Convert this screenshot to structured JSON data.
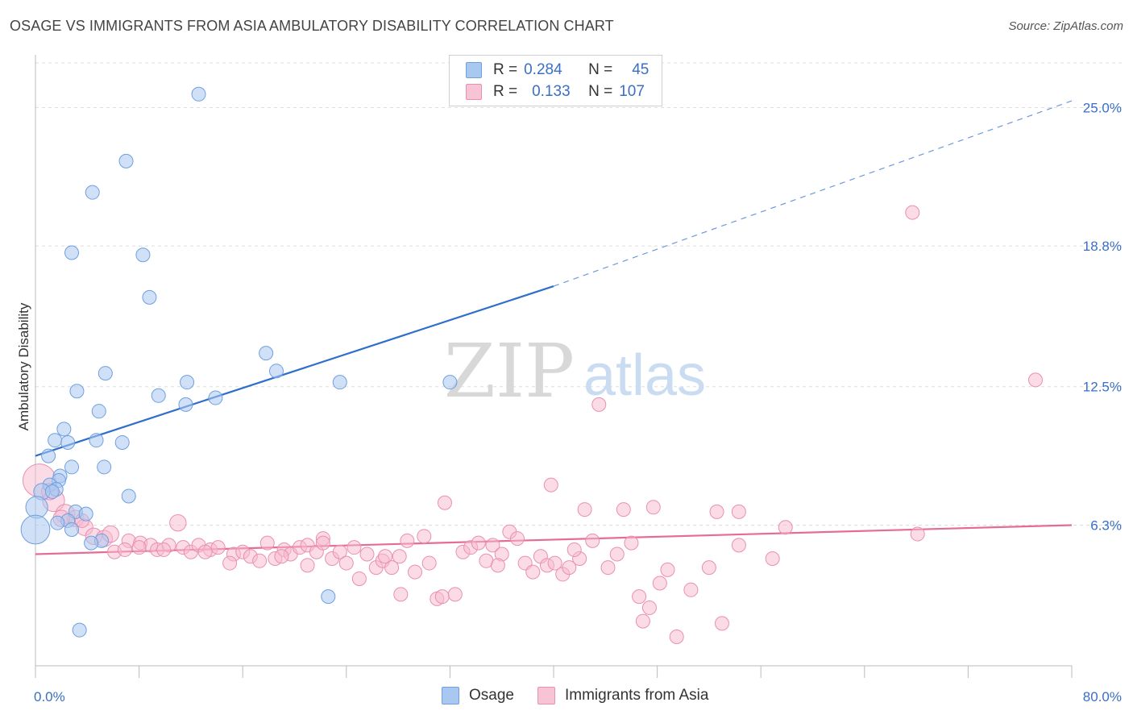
{
  "header": {
    "title": "OSAGE VS IMMIGRANTS FROM ASIA AMBULATORY DISABILITY CORRELATION CHART",
    "source": "Source: ZipAtlas.com"
  },
  "watermark": {
    "zip": "ZIP",
    "atlas": "atlas"
  },
  "legend": {
    "rows": [
      {
        "r_label": "R =",
        "r_value": "0.284",
        "n_label": "N =",
        "n_value": "45"
      },
      {
        "r_label": "R =",
        "r_value": "0.133",
        "n_label": "N =",
        "n_value": "107"
      }
    ]
  },
  "bottom_legend": {
    "series1": "Osage",
    "series2": "Immigrants from Asia"
  },
  "colors": {
    "osage_fill": "#a9c8f0",
    "osage_stroke": "#6f9fe0",
    "osage_line": "#2f6fcc",
    "asia_fill": "#f7b9ce",
    "asia_stroke": "#ea8fb0",
    "asia_line": "#e46c96",
    "axis_text": "#3a6fc4",
    "grid": "#dddddd"
  },
  "chart_data": {
    "type": "scatter",
    "title": "OSAGE VS IMMIGRANTS FROM ASIA AMBULATORY DISABILITY CORRELATION CHART",
    "xlabel": "",
    "ylabel": "Ambulatory Disability",
    "xlim": [
      0,
      80
    ],
    "ylim": [
      0,
      27
    ],
    "x_tick_labels": [
      "0.0%",
      "80.0%"
    ],
    "y_ticks": [
      6.3,
      12.5,
      18.8,
      25.0
    ],
    "y_tick_labels": [
      "6.3%",
      "12.5%",
      "18.8%",
      "25.0%"
    ],
    "grid": true,
    "legend_position": "top-center",
    "series": [
      {
        "name": "Osage",
        "R": 0.284,
        "N": 45,
        "trend": {
          "x0": 0,
          "y0": 9.4,
          "x1": 40,
          "y1": 17.0,
          "extend_to_x": 80,
          "extend_y": 25.3
        },
        "points": [
          [
            12.6,
            25.6,
            1
          ],
          [
            7.0,
            22.6,
            1
          ],
          [
            4.4,
            21.2,
            1
          ],
          [
            2.8,
            18.5,
            1
          ],
          [
            8.3,
            18.4,
            1
          ],
          [
            8.8,
            16.5,
            1
          ],
          [
            17.8,
            14.0,
            1
          ],
          [
            18.6,
            13.2,
            1
          ],
          [
            5.4,
            13.1,
            1
          ],
          [
            23.5,
            12.7,
            1
          ],
          [
            32.0,
            12.7,
            1
          ],
          [
            11.7,
            12.7,
            1
          ],
          [
            3.2,
            12.3,
            1
          ],
          [
            9.5,
            12.1,
            1
          ],
          [
            13.9,
            12.0,
            1
          ],
          [
            11.6,
            11.7,
            1
          ],
          [
            4.9,
            11.4,
            1
          ],
          [
            2.2,
            10.6,
            1
          ],
          [
            1.5,
            10.1,
            1
          ],
          [
            2.5,
            10.0,
            1
          ],
          [
            4.7,
            10.1,
            1
          ],
          [
            6.7,
            10.0,
            1
          ],
          [
            1.0,
            9.4,
            1
          ],
          [
            2.8,
            8.9,
            1
          ],
          [
            5.3,
            8.9,
            1
          ],
          [
            1.9,
            8.5,
            1
          ],
          [
            1.8,
            8.3,
            1
          ],
          [
            1.1,
            8.1,
            1
          ],
          [
            1.6,
            7.9,
            1
          ],
          [
            0.5,
            7.8,
            1.2
          ],
          [
            1.3,
            7.8,
            1
          ],
          [
            7.2,
            7.6,
            1
          ],
          [
            0.1,
            7.1,
            1.6
          ],
          [
            3.1,
            6.9,
            1
          ],
          [
            3.9,
            6.8,
            1
          ],
          [
            2.5,
            6.5,
            1
          ],
          [
            1.7,
            6.4,
            1
          ],
          [
            2.8,
            6.1,
            1
          ],
          [
            0.0,
            6.1,
            2.1
          ],
          [
            5.1,
            5.6,
            1
          ],
          [
            4.3,
            5.5,
            1
          ],
          [
            22.6,
            3.1,
            1
          ],
          [
            3.4,
            1.6,
            1
          ]
        ]
      },
      {
        "name": "Immigrants from Asia",
        "R": 0.133,
        "N": 107,
        "trend": {
          "x0": 0,
          "y0": 5.0,
          "x1": 80,
          "y1": 6.3
        },
        "points": [
          [
            67.7,
            20.3,
            1
          ],
          [
            77.2,
            12.8,
            1
          ],
          [
            43.5,
            11.7,
            1
          ],
          [
            0.3,
            8.3,
            2.4
          ],
          [
            39.8,
            8.1,
            1
          ],
          [
            31.6,
            7.3,
            1
          ],
          [
            42.4,
            7.0,
            1
          ],
          [
            45.4,
            7.0,
            1
          ],
          [
            47.7,
            7.1,
            1
          ],
          [
            52.6,
            6.9,
            1
          ],
          [
            54.3,
            6.9,
            1
          ],
          [
            1.4,
            7.4,
            1.6
          ],
          [
            2.3,
            6.8,
            1.4
          ],
          [
            3.1,
            6.6,
            1.2
          ],
          [
            11.0,
            6.4,
            1.2
          ],
          [
            3.8,
            6.2,
            1.2
          ],
          [
            57.9,
            6.2,
            1
          ],
          [
            68.1,
            5.9,
            1
          ],
          [
            4.5,
            5.8,
            1.2
          ],
          [
            5.3,
            5.7,
            1.2
          ],
          [
            5.8,
            5.9,
            1.2
          ],
          [
            7.2,
            5.6,
            1
          ],
          [
            8.1,
            5.5,
            1
          ],
          [
            8.9,
            5.4,
            1
          ],
          [
            9.4,
            5.2,
            1
          ],
          [
            10.3,
            5.4,
            1
          ],
          [
            11.4,
            5.3,
            1
          ],
          [
            12.0,
            5.1,
            1
          ],
          [
            12.6,
            5.4,
            1
          ],
          [
            13.5,
            5.2,
            1
          ],
          [
            14.1,
            5.3,
            1
          ],
          [
            15.3,
            5.0,
            1
          ],
          [
            16.0,
            5.1,
            1
          ],
          [
            16.6,
            4.9,
            1
          ],
          [
            17.3,
            4.7,
            1
          ],
          [
            17.9,
            5.5,
            1
          ],
          [
            18.5,
            4.8,
            1
          ],
          [
            19.2,
            5.2,
            1
          ],
          [
            19.7,
            5.0,
            1
          ],
          [
            20.4,
            5.3,
            1
          ],
          [
            21.0,
            5.4,
            1
          ],
          [
            21.7,
            5.1,
            1
          ],
          [
            22.2,
            5.7,
            1
          ],
          [
            22.9,
            4.8,
            1
          ],
          [
            23.5,
            5.1,
            1
          ],
          [
            24.0,
            4.6,
            1
          ],
          [
            24.6,
            5.3,
            1
          ],
          [
            25.0,
            3.9,
            1
          ],
          [
            25.6,
            5.0,
            1
          ],
          [
            26.3,
            4.4,
            1
          ],
          [
            26.8,
            4.7,
            1
          ],
          [
            27.5,
            4.4,
            1
          ],
          [
            28.1,
            4.9,
            1
          ],
          [
            28.7,
            5.6,
            1
          ],
          [
            29.3,
            4.2,
            1
          ],
          [
            30.0,
            5.8,
            1
          ],
          [
            30.4,
            4.6,
            1
          ],
          [
            31.0,
            3.0,
            1
          ],
          [
            31.4,
            3.1,
            1
          ],
          [
            32.4,
            3.2,
            1
          ],
          [
            33.0,
            5.1,
            1
          ],
          [
            33.6,
            5.3,
            1
          ],
          [
            34.2,
            5.5,
            1
          ],
          [
            34.8,
            4.7,
            1
          ],
          [
            35.3,
            5.4,
            1
          ],
          [
            36.0,
            5.0,
            1
          ],
          [
            36.6,
            6.0,
            1
          ],
          [
            37.2,
            5.7,
            1
          ],
          [
            37.8,
            4.6,
            1
          ],
          [
            38.4,
            4.2,
            1
          ],
          [
            39.0,
            4.9,
            1
          ],
          [
            39.5,
            4.5,
            1
          ],
          [
            40.1,
            4.6,
            1
          ],
          [
            40.7,
            4.1,
            1
          ],
          [
            41.2,
            4.4,
            1
          ],
          [
            42.0,
            4.8,
            1
          ],
          [
            43.0,
            5.6,
            1
          ],
          [
            44.2,
            4.4,
            1
          ],
          [
            44.9,
            5.0,
            1
          ],
          [
            46.0,
            5.5,
            1
          ],
          [
            46.6,
            3.1,
            1
          ],
          [
            46.9,
            2.0,
            1
          ],
          [
            47.4,
            2.6,
            1
          ],
          [
            48.2,
            3.7,
            1
          ],
          [
            48.8,
            4.3,
            1
          ],
          [
            49.5,
            1.3,
            1
          ],
          [
            50.6,
            3.4,
            1
          ],
          [
            52.0,
            4.4,
            1
          ],
          [
            53.0,
            1.9,
            1
          ],
          [
            54.3,
            5.4,
            1
          ],
          [
            56.9,
            4.8,
            1
          ],
          [
            8.0,
            5.3,
            1
          ],
          [
            9.9,
            5.2,
            1
          ],
          [
            6.1,
            5.1,
            1
          ],
          [
            6.9,
            5.2,
            1
          ],
          [
            2.0,
            6.6,
            1.2
          ],
          [
            3.6,
            6.5,
            1
          ],
          [
            1.1,
            7.8,
            1.2
          ],
          [
            15.0,
            4.6,
            1
          ],
          [
            22.2,
            5.5,
            1
          ],
          [
            28.2,
            3.2,
            1
          ],
          [
            27.0,
            4.9,
            1
          ],
          [
            35.7,
            4.5,
            1
          ],
          [
            41.6,
            5.2,
            1
          ],
          [
            21.0,
            4.5,
            1
          ],
          [
            19.0,
            4.9,
            1
          ],
          [
            13.1,
            5.1,
            1
          ]
        ]
      }
    ]
  }
}
